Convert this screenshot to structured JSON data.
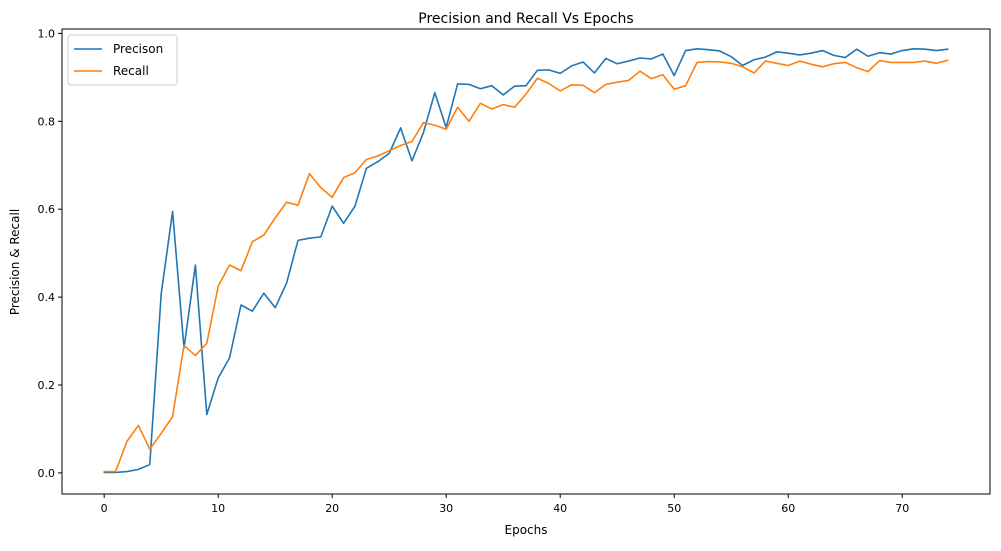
{
  "chart_data": {
    "type": "line",
    "title": "Precision and Recall Vs Epochs",
    "xlabel": "Epochs",
    "ylabel": "Precision & Recall",
    "xlim": [
      -3.7,
      77.7
    ],
    "ylim": [
      -0.048,
      1.01
    ],
    "xticks": [
      0,
      10,
      20,
      30,
      40,
      50,
      60,
      70
    ],
    "yticks": [
      0.0,
      0.2,
      0.4,
      0.6,
      0.8,
      1.0
    ],
    "ytick_labels": [
      "0.0",
      "0.2",
      "0.4",
      "0.6",
      "0.8",
      "1.0"
    ],
    "grid": false,
    "legend": "top-left",
    "x": [
      0,
      1,
      2,
      3,
      4,
      5,
      6,
      7,
      8,
      9,
      10,
      11,
      12,
      13,
      14,
      15,
      16,
      17,
      18,
      19,
      20,
      21,
      22,
      23,
      24,
      25,
      26,
      27,
      28,
      29,
      30,
      31,
      32,
      33,
      34,
      35,
      36,
      37,
      38,
      39,
      40,
      41,
      42,
      43,
      44,
      45,
      46,
      47,
      48,
      49,
      50,
      51,
      52,
      53,
      54,
      55,
      56,
      57,
      58,
      59,
      60,
      61,
      62,
      63,
      64,
      65,
      66,
      67,
      68,
      69,
      70,
      71,
      72,
      73,
      74
    ],
    "series": [
      {
        "name": "Precison",
        "color": "#1f77b4",
        "values": [
          0.001,
          0.001,
          0.003,
          0.008,
          0.019,
          0.407,
          0.595,
          0.284,
          0.473,
          0.133,
          0.216,
          0.262,
          0.382,
          0.368,
          0.409,
          0.376,
          0.432,
          0.529,
          0.534,
          0.537,
          0.607,
          0.568,
          0.607,
          0.693,
          0.708,
          0.727,
          0.785,
          0.71,
          0.774,
          0.865,
          0.786,
          0.885,
          0.884,
          0.874,
          0.881,
          0.86,
          0.88,
          0.881,
          0.916,
          0.917,
          0.909,
          0.926,
          0.935,
          0.91,
          0.943,
          0.931,
          0.937,
          0.944,
          0.942,
          0.953,
          0.904,
          0.961,
          0.965,
          0.963,
          0.96,
          0.947,
          0.927,
          0.94,
          0.946,
          0.958,
          0.955,
          0.951,
          0.955,
          0.961,
          0.95,
          0.945,
          0.964,
          0.948,
          0.956,
          0.953,
          0.961,
          0.965,
          0.964,
          0.961,
          0.964
        ]
      },
      {
        "name": "Recall",
        "color": "#ff7f0e",
        "values": [
          0.003,
          0.003,
          0.072,
          0.108,
          0.054,
          0.09,
          0.128,
          0.29,
          0.267,
          0.295,
          0.425,
          0.473,
          0.46,
          0.526,
          0.541,
          0.58,
          0.616,
          0.609,
          0.681,
          0.649,
          0.627,
          0.672,
          0.683,
          0.713,
          0.721,
          0.733,
          0.745,
          0.754,
          0.797,
          0.791,
          0.782,
          0.832,
          0.8,
          0.841,
          0.828,
          0.838,
          0.832,
          0.862,
          0.898,
          0.886,
          0.869,
          0.883,
          0.882,
          0.865,
          0.884,
          0.889,
          0.893,
          0.914,
          0.897,
          0.906,
          0.873,
          0.881,
          0.934,
          0.936,
          0.935,
          0.932,
          0.924,
          0.91,
          0.937,
          0.932,
          0.927,
          0.937,
          0.93,
          0.924,
          0.931,
          0.934,
          0.922,
          0.913,
          0.938,
          0.934,
          0.934,
          0.934,
          0.937,
          0.932,
          0.939
        ]
      }
    ]
  }
}
